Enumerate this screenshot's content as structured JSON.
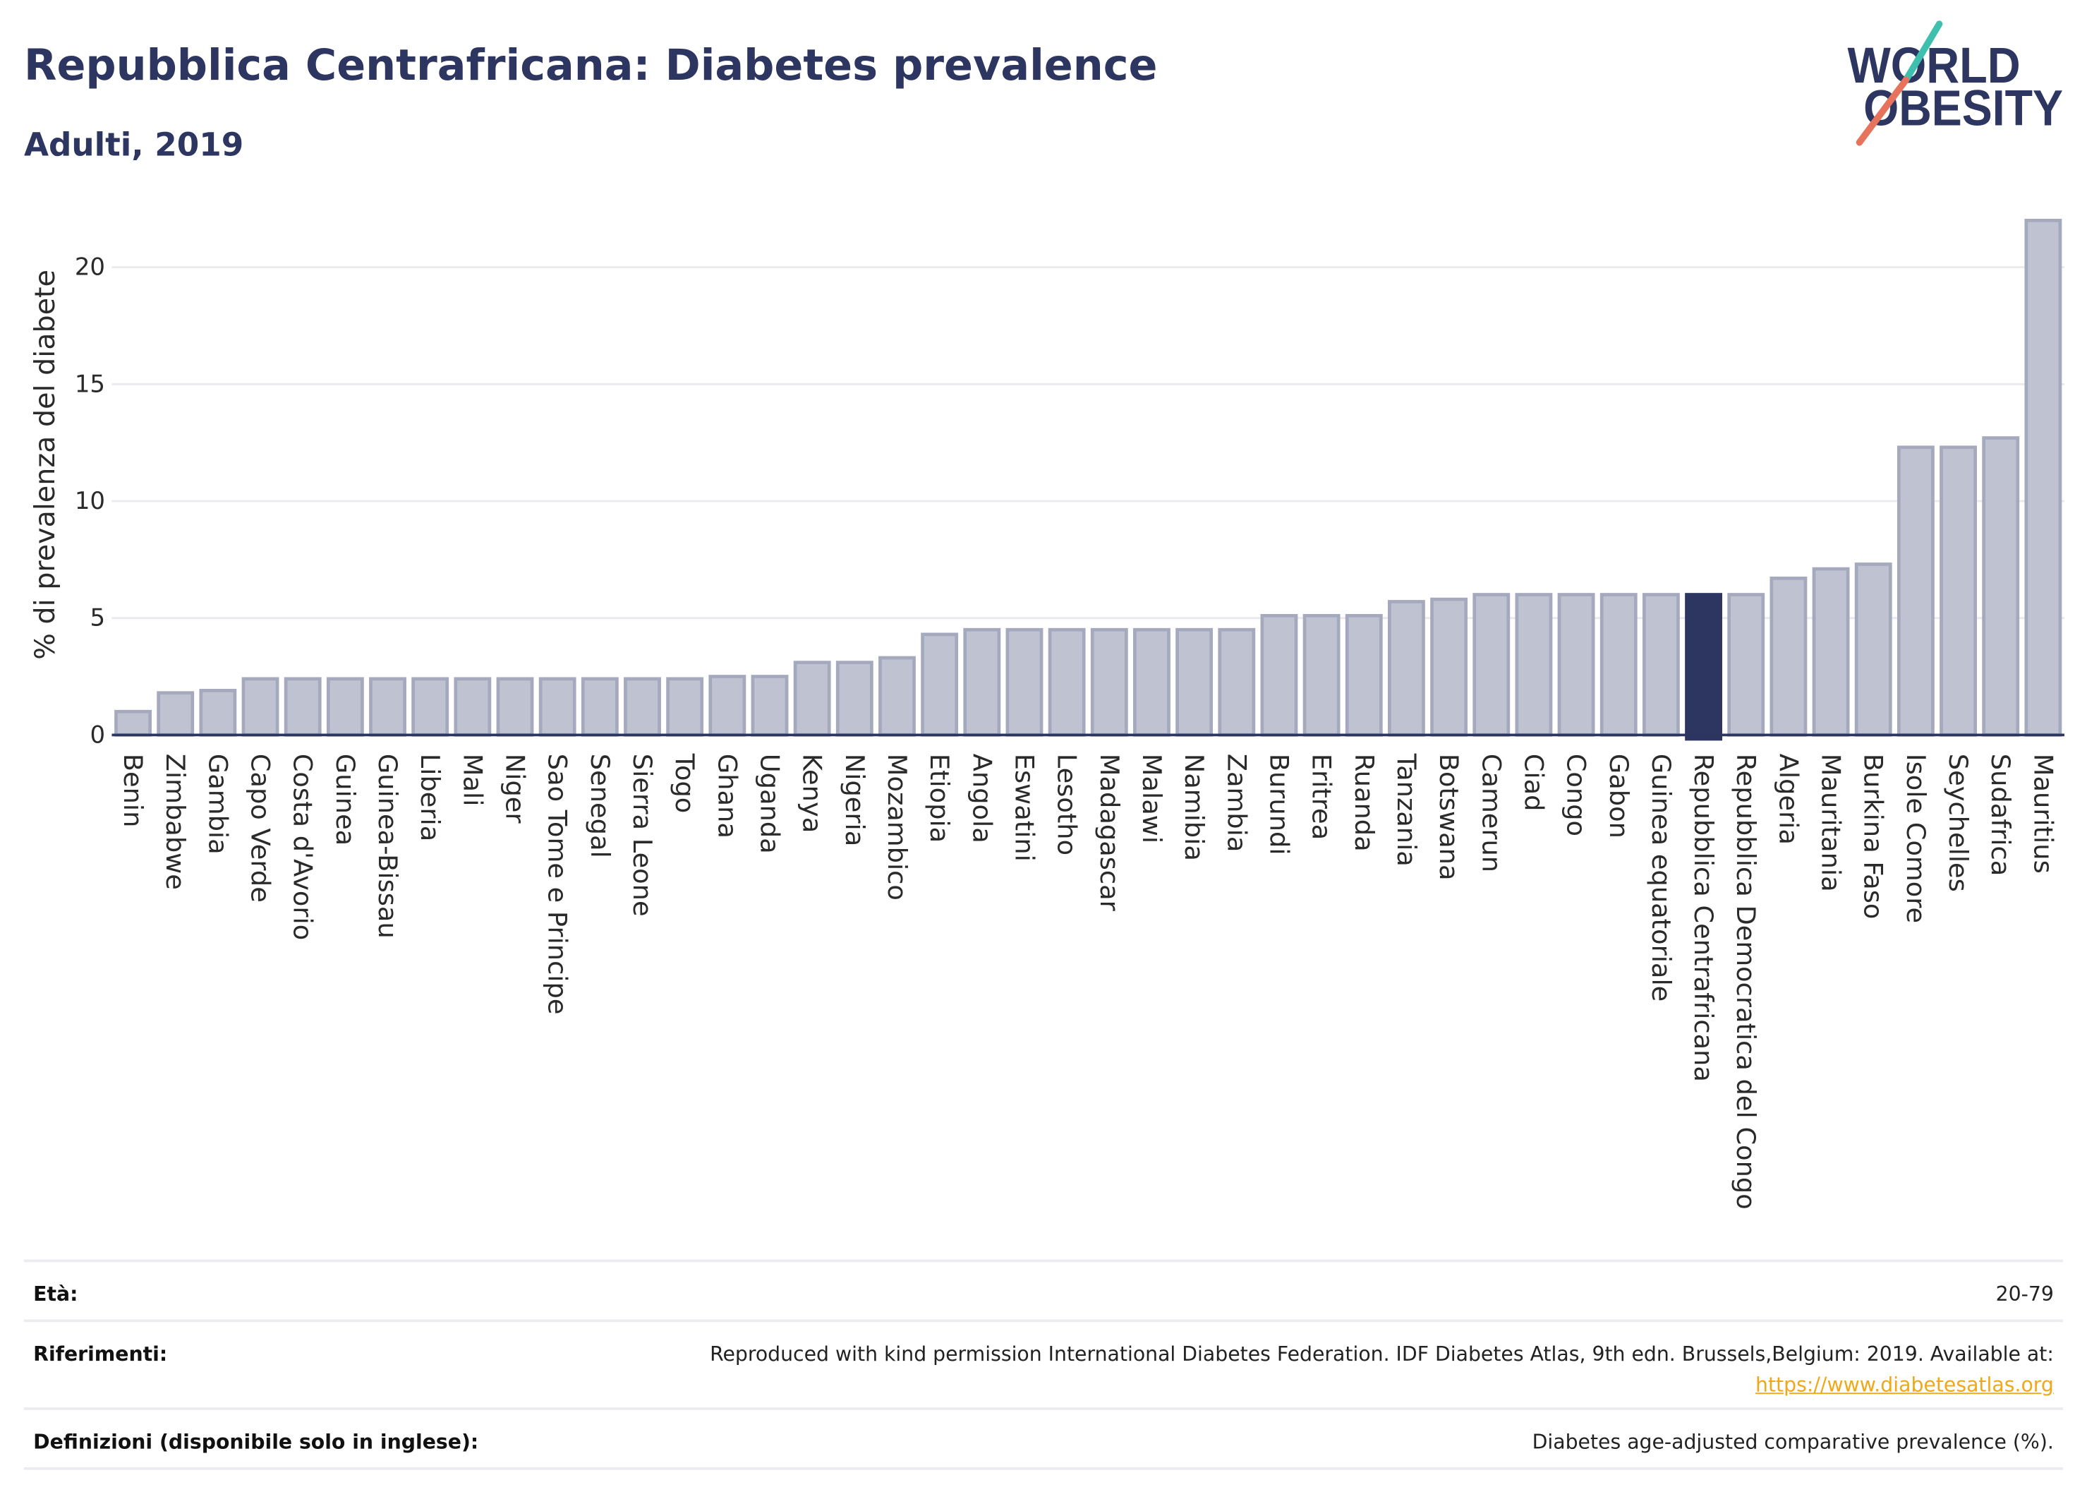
{
  "chart_data": {
    "type": "bar",
    "title": "Repubblica Centrafricana: Diabetes prevalence",
    "subtitle": "Adulti, 2019",
    "ylabel": "% di prevalenza del diabete",
    "ylim": [
      0,
      23
    ],
    "yticks": [
      0,
      5,
      10,
      15,
      20
    ],
    "grid": true,
    "highlight_index": 37,
    "categories": [
      "Benin",
      "Zimbabwe",
      "Gambia",
      "Capo Verde",
      "Costa d'Avorio",
      "Guinea",
      "Guinea-Bissau",
      "Liberia",
      "Mali",
      "Niger",
      "Sao Tome e Principe",
      "Senegal",
      "Sierra Leone",
      "Togo",
      "Ghana",
      "Uganda",
      "Kenya",
      "Nigeria",
      "Mozambico",
      "Etiopia",
      "Angola",
      "Eswatini",
      "Lesotho",
      "Madagascar",
      "Malawi",
      "Namibia",
      "Zambia",
      "Burundi",
      "Eritrea",
      "Ruanda",
      "Tanzania",
      "Botswana",
      "Camerun",
      "Ciad",
      "Congo",
      "Gabon",
      "Guinea equatoriale",
      "Repubblica Centrafricana",
      "Repubblica Democratica del Congo",
      "Algeria",
      "Mauritania",
      "Burkina Faso",
      "Isole Comore",
      "Seychelles",
      "Sudafrica",
      "Mauritius"
    ],
    "values": [
      1.0,
      1.8,
      1.9,
      2.4,
      2.4,
      2.4,
      2.4,
      2.4,
      2.4,
      2.4,
      2.4,
      2.4,
      2.4,
      2.4,
      2.5,
      2.5,
      3.1,
      3.1,
      3.3,
      4.3,
      4.5,
      4.5,
      4.5,
      4.5,
      4.5,
      4.5,
      4.5,
      5.1,
      5.1,
      5.1,
      5.7,
      5.8,
      6.0,
      6.0,
      6.0,
      6.0,
      6.0,
      6.0,
      6.0,
      6.7,
      7.1,
      7.3,
      12.3,
      12.3,
      12.7,
      22.0
    ],
    "colors": {
      "bar": "#bfc2d0",
      "bar_outline": "#a5a9bd",
      "highlight": "#2d3561",
      "axis": "#2d3561",
      "gridline": "#e9e9ee"
    }
  },
  "logo": {
    "line1": "WORLD",
    "line2": "OBESITY",
    "color": "#2d3561",
    "accent_top": "#3fbfae",
    "accent_bottom": "#e7735c"
  },
  "info": {
    "age": {
      "label": "Età:",
      "value": "20-79"
    },
    "references": {
      "label": "Riferimenti:",
      "value": "Reproduced with kind permission International Diabetes Federation. IDF Diabetes Atlas, 9th edn. Brussels,Belgium: 2019. Available at:",
      "link": "https://www.diabetesatlas.org"
    },
    "definitions": {
      "label": "Definizioni (disponibile solo in inglese):",
      "value": "Diabetes age-adjusted comparative prevalence (%)."
    }
  },
  "colors": {
    "title": "#2d3561",
    "link": "#f0a818",
    "divider": "#ebecf2"
  }
}
